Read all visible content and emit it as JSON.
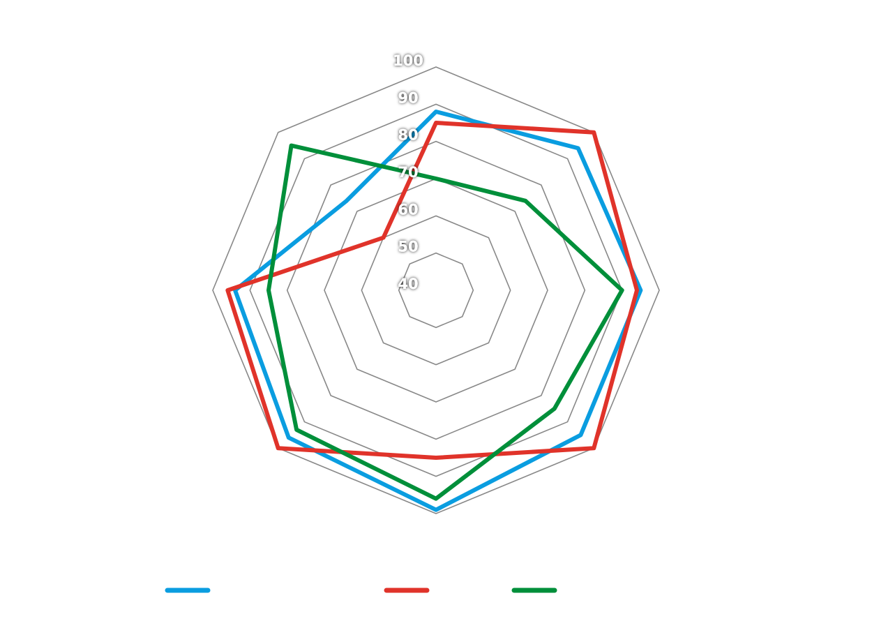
{
  "chart_data": {
    "type": "radar",
    "ylim": [
      40,
      100
    ],
    "yticks": [
      40,
      50,
      60,
      70,
      80,
      90,
      100
    ],
    "grid": true,
    "series": [
      {
        "color": "#0a9de0",
        "values": [
          88,
          94,
          95,
          95,
          99,
          96,
          94,
          74
        ]
      },
      {
        "color": "#e0332a",
        "values": [
          85,
          100,
          94,
          100,
          85,
          100,
          96,
          60
        ]
      },
      {
        "color": "#008f3a",
        "values": [
          70,
          74,
          90,
          85,
          96,
          93,
          85,
          95
        ]
      }
    ]
  }
}
